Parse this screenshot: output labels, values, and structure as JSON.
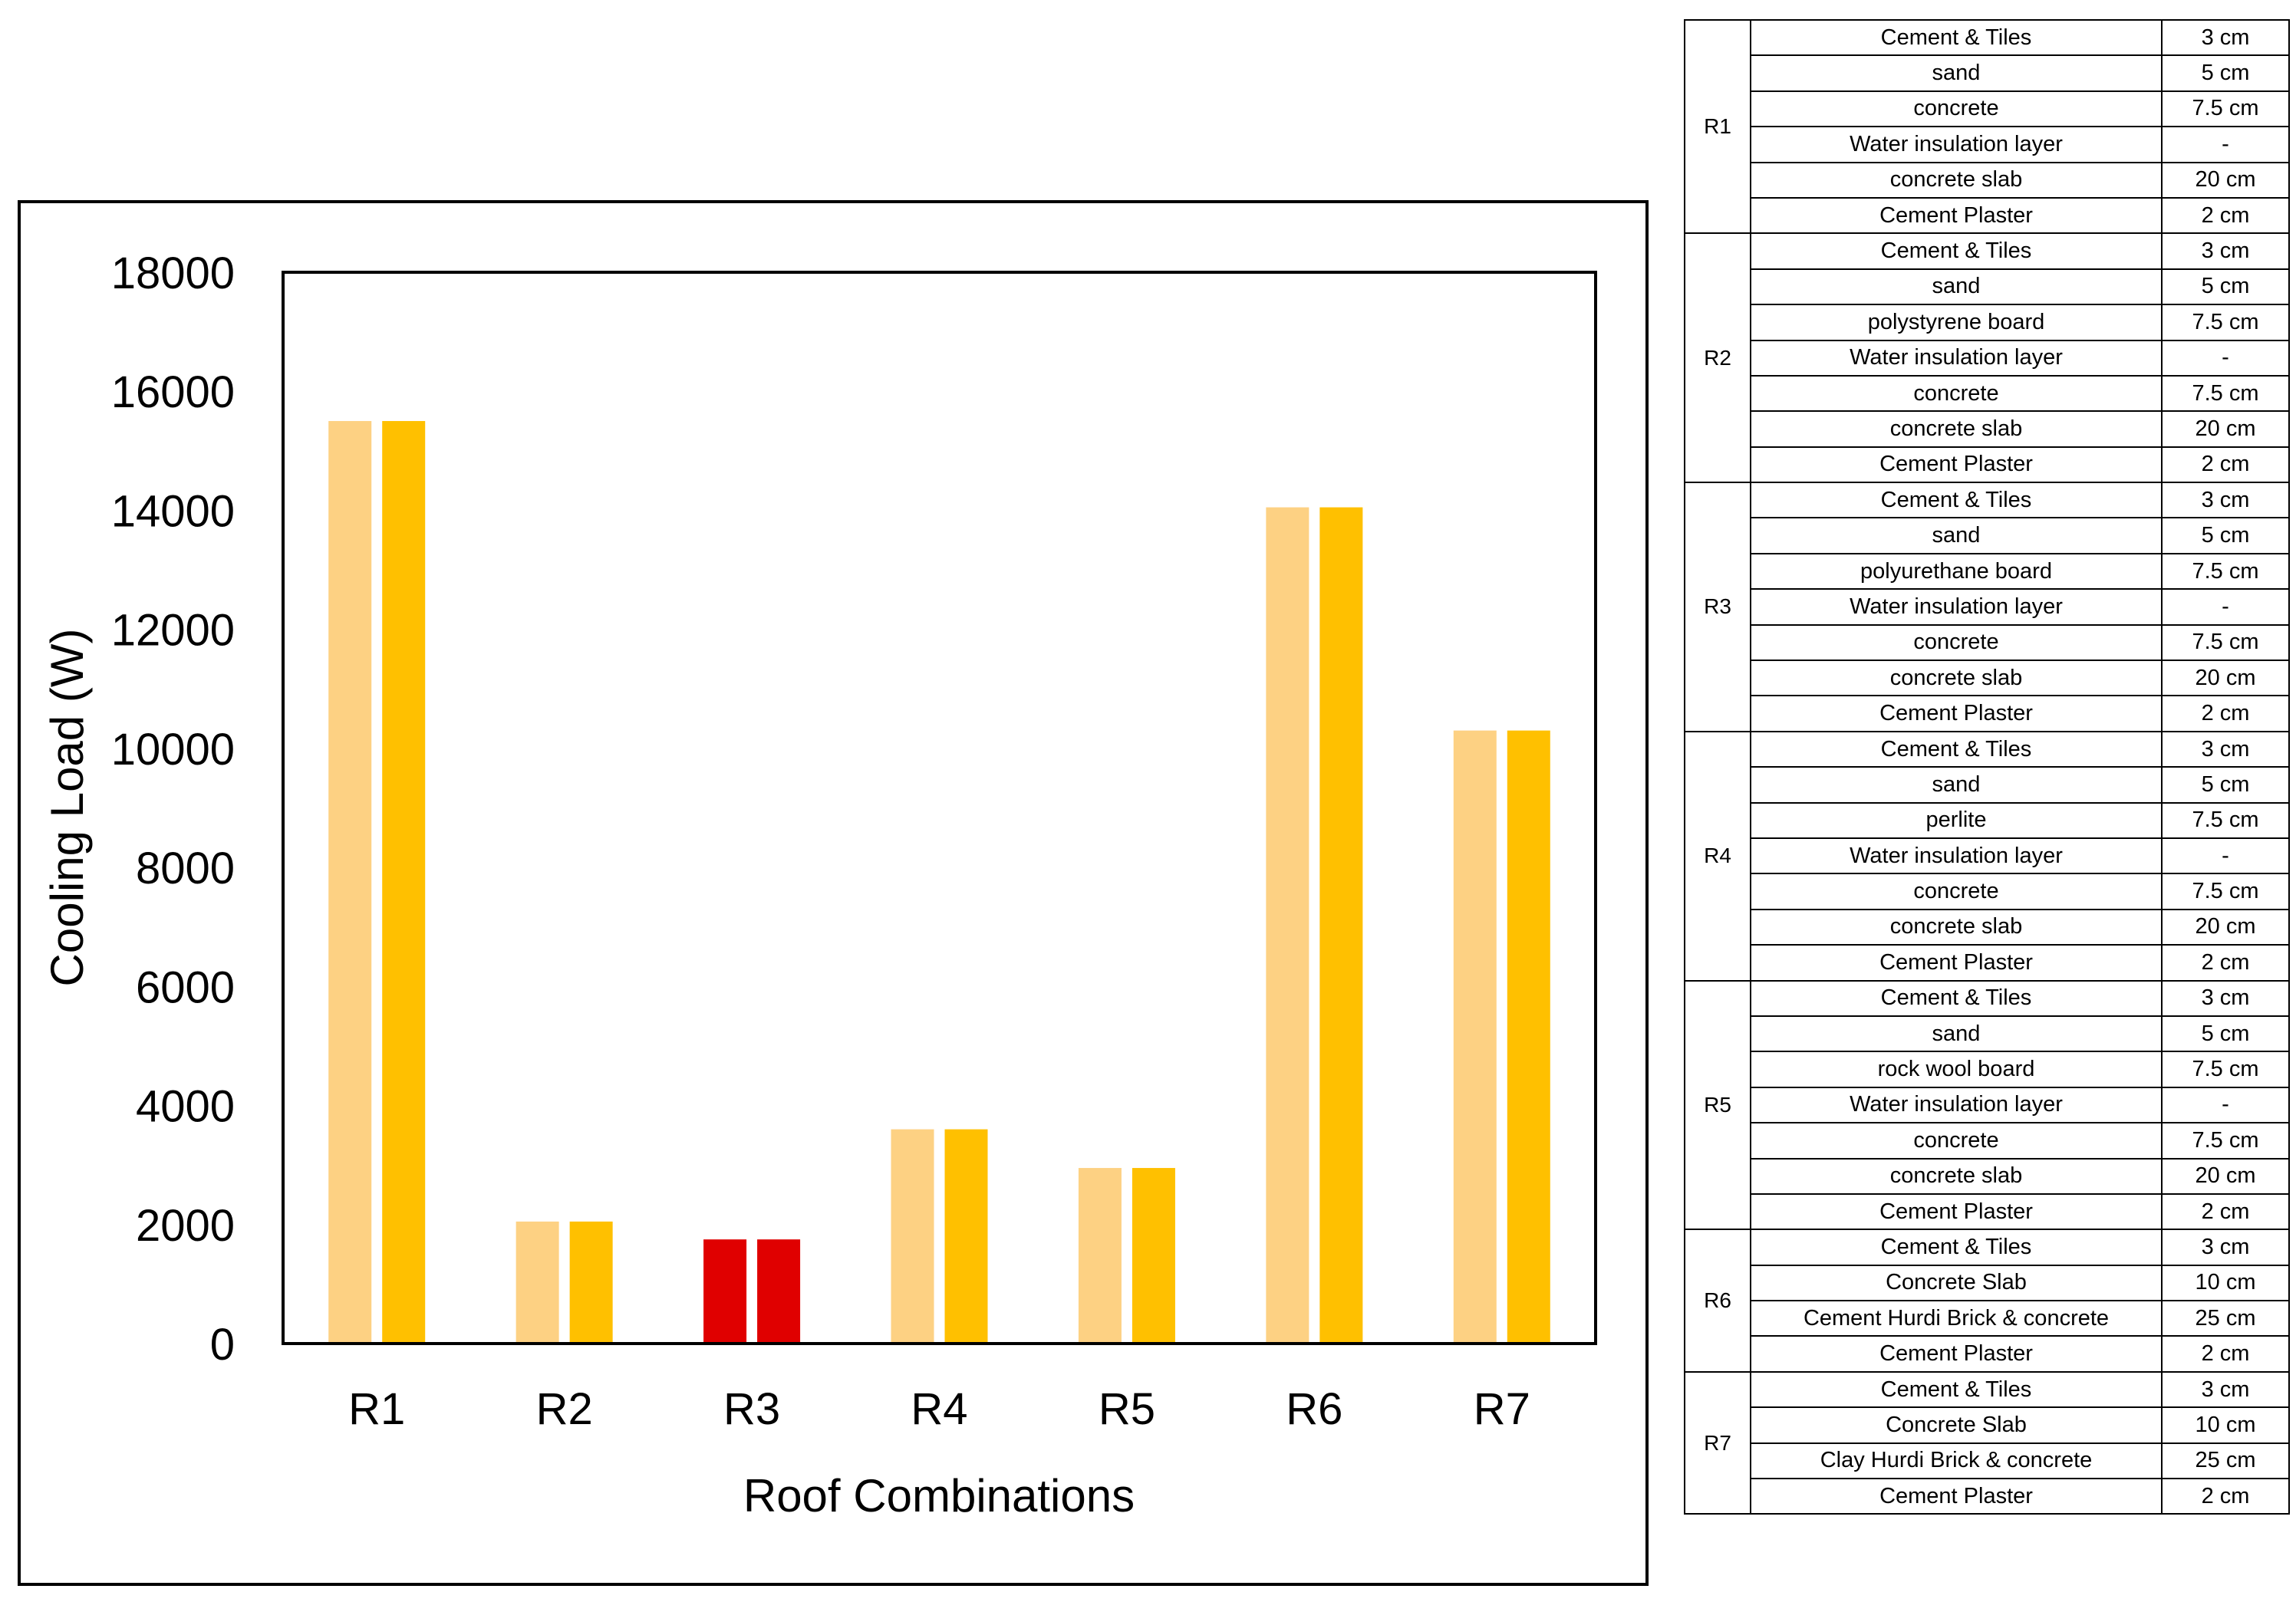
{
  "colors": {
    "light_bar": "#FDD183",
    "dark_bar": "#FFC000",
    "highlight_bar": "#E00000",
    "axis": "#000000"
  },
  "chart_data": {
    "type": "bar",
    "title": "",
    "xlabel": "Roof Combinations",
    "ylabel": "Cooling Load (W)",
    "ylim": [
      0,
      18000
    ],
    "yticks": [
      "0",
      "2000",
      "4000",
      "6000",
      "8000",
      "10000",
      "12000",
      "14000",
      "16000",
      "18000"
    ],
    "categories": [
      "R1",
      "R2",
      "R3",
      "R4",
      "R5",
      "R6",
      "R7"
    ],
    "series": [
      {
        "name": "series-1",
        "values": [
          15500,
          2050,
          1750,
          3600,
          2950,
          14050,
          10300
        ]
      },
      {
        "name": "series-2",
        "values": [
          15500,
          2050,
          1750,
          3600,
          2950,
          14050,
          10300
        ]
      }
    ],
    "highlight_category": "R3",
    "legend": "none",
    "grid": false
  },
  "layers_table": [
    {
      "roof": "R1",
      "rows": [
        {
          "material": "Cement & Tiles",
          "thickness": "3 cm"
        },
        {
          "material": "sand",
          "thickness": "5 cm"
        },
        {
          "material": "concrete",
          "thickness": "7.5 cm"
        },
        {
          "material": "Water insulation layer",
          "thickness": "-"
        },
        {
          "material": "concrete slab",
          "thickness": "20 cm"
        },
        {
          "material": "Cement Plaster",
          "thickness": "2 cm"
        }
      ]
    },
    {
      "roof": "R2",
      "rows": [
        {
          "material": "Cement & Tiles",
          "thickness": "3 cm"
        },
        {
          "material": "sand",
          "thickness": "5 cm"
        },
        {
          "material": "polystyrene board",
          "thickness": "7.5 cm"
        },
        {
          "material": "Water insulation layer",
          "thickness": "-"
        },
        {
          "material": "concrete",
          "thickness": "7.5 cm"
        },
        {
          "material": "concrete slab",
          "thickness": "20 cm"
        },
        {
          "material": "Cement Plaster",
          "thickness": "2 cm"
        }
      ]
    },
    {
      "roof": "R3",
      "rows": [
        {
          "material": "Cement & Tiles",
          "thickness": "3 cm"
        },
        {
          "material": "sand",
          "thickness": "5 cm"
        },
        {
          "material": "polyurethane board",
          "thickness": "7.5 cm"
        },
        {
          "material": "Water insulation layer",
          "thickness": "-"
        },
        {
          "material": "concrete",
          "thickness": "7.5 cm"
        },
        {
          "material": "concrete slab",
          "thickness": "20 cm"
        },
        {
          "material": "Cement Plaster",
          "thickness": "2 cm"
        }
      ]
    },
    {
      "roof": "R4",
      "rows": [
        {
          "material": "Cement & Tiles",
          "thickness": "3 cm"
        },
        {
          "material": "sand",
          "thickness": "5 cm"
        },
        {
          "material": "perlite",
          "thickness": "7.5 cm"
        },
        {
          "material": "Water insulation layer",
          "thickness": "-"
        },
        {
          "material": "concrete",
          "thickness": "7.5 cm"
        },
        {
          "material": "concrete slab",
          "thickness": "20 cm"
        },
        {
          "material": "Cement Plaster",
          "thickness": "2 cm"
        }
      ]
    },
    {
      "roof": "R5",
      "rows": [
        {
          "material": "Cement & Tiles",
          "thickness": "3 cm"
        },
        {
          "material": "sand",
          "thickness": "5 cm"
        },
        {
          "material": "rock wool board",
          "thickness": "7.5 cm"
        },
        {
          "material": "Water insulation layer",
          "thickness": "-"
        },
        {
          "material": "concrete",
          "thickness": "7.5 cm"
        },
        {
          "material": "concrete slab",
          "thickness": "20 cm"
        },
        {
          "material": "Cement Plaster",
          "thickness": "2 cm"
        }
      ]
    },
    {
      "roof": "R6",
      "rows": [
        {
          "material": "Cement & Tiles",
          "thickness": "3 cm"
        },
        {
          "material": "Concrete Slab",
          "thickness": "10 cm"
        },
        {
          "material": "Cement Hurdi Brick & concrete",
          "thickness": "25 cm"
        },
        {
          "material": "Cement Plaster",
          "thickness": "2 cm"
        }
      ]
    },
    {
      "roof": "R7",
      "rows": [
        {
          "material": "Cement & Tiles",
          "thickness": "3 cm"
        },
        {
          "material": "Concrete Slab",
          "thickness": "10 cm"
        },
        {
          "material": "Clay Hurdi Brick & concrete",
          "thickness": "25 cm"
        },
        {
          "material": "Cement Plaster",
          "thickness": "2 cm"
        }
      ]
    }
  ]
}
